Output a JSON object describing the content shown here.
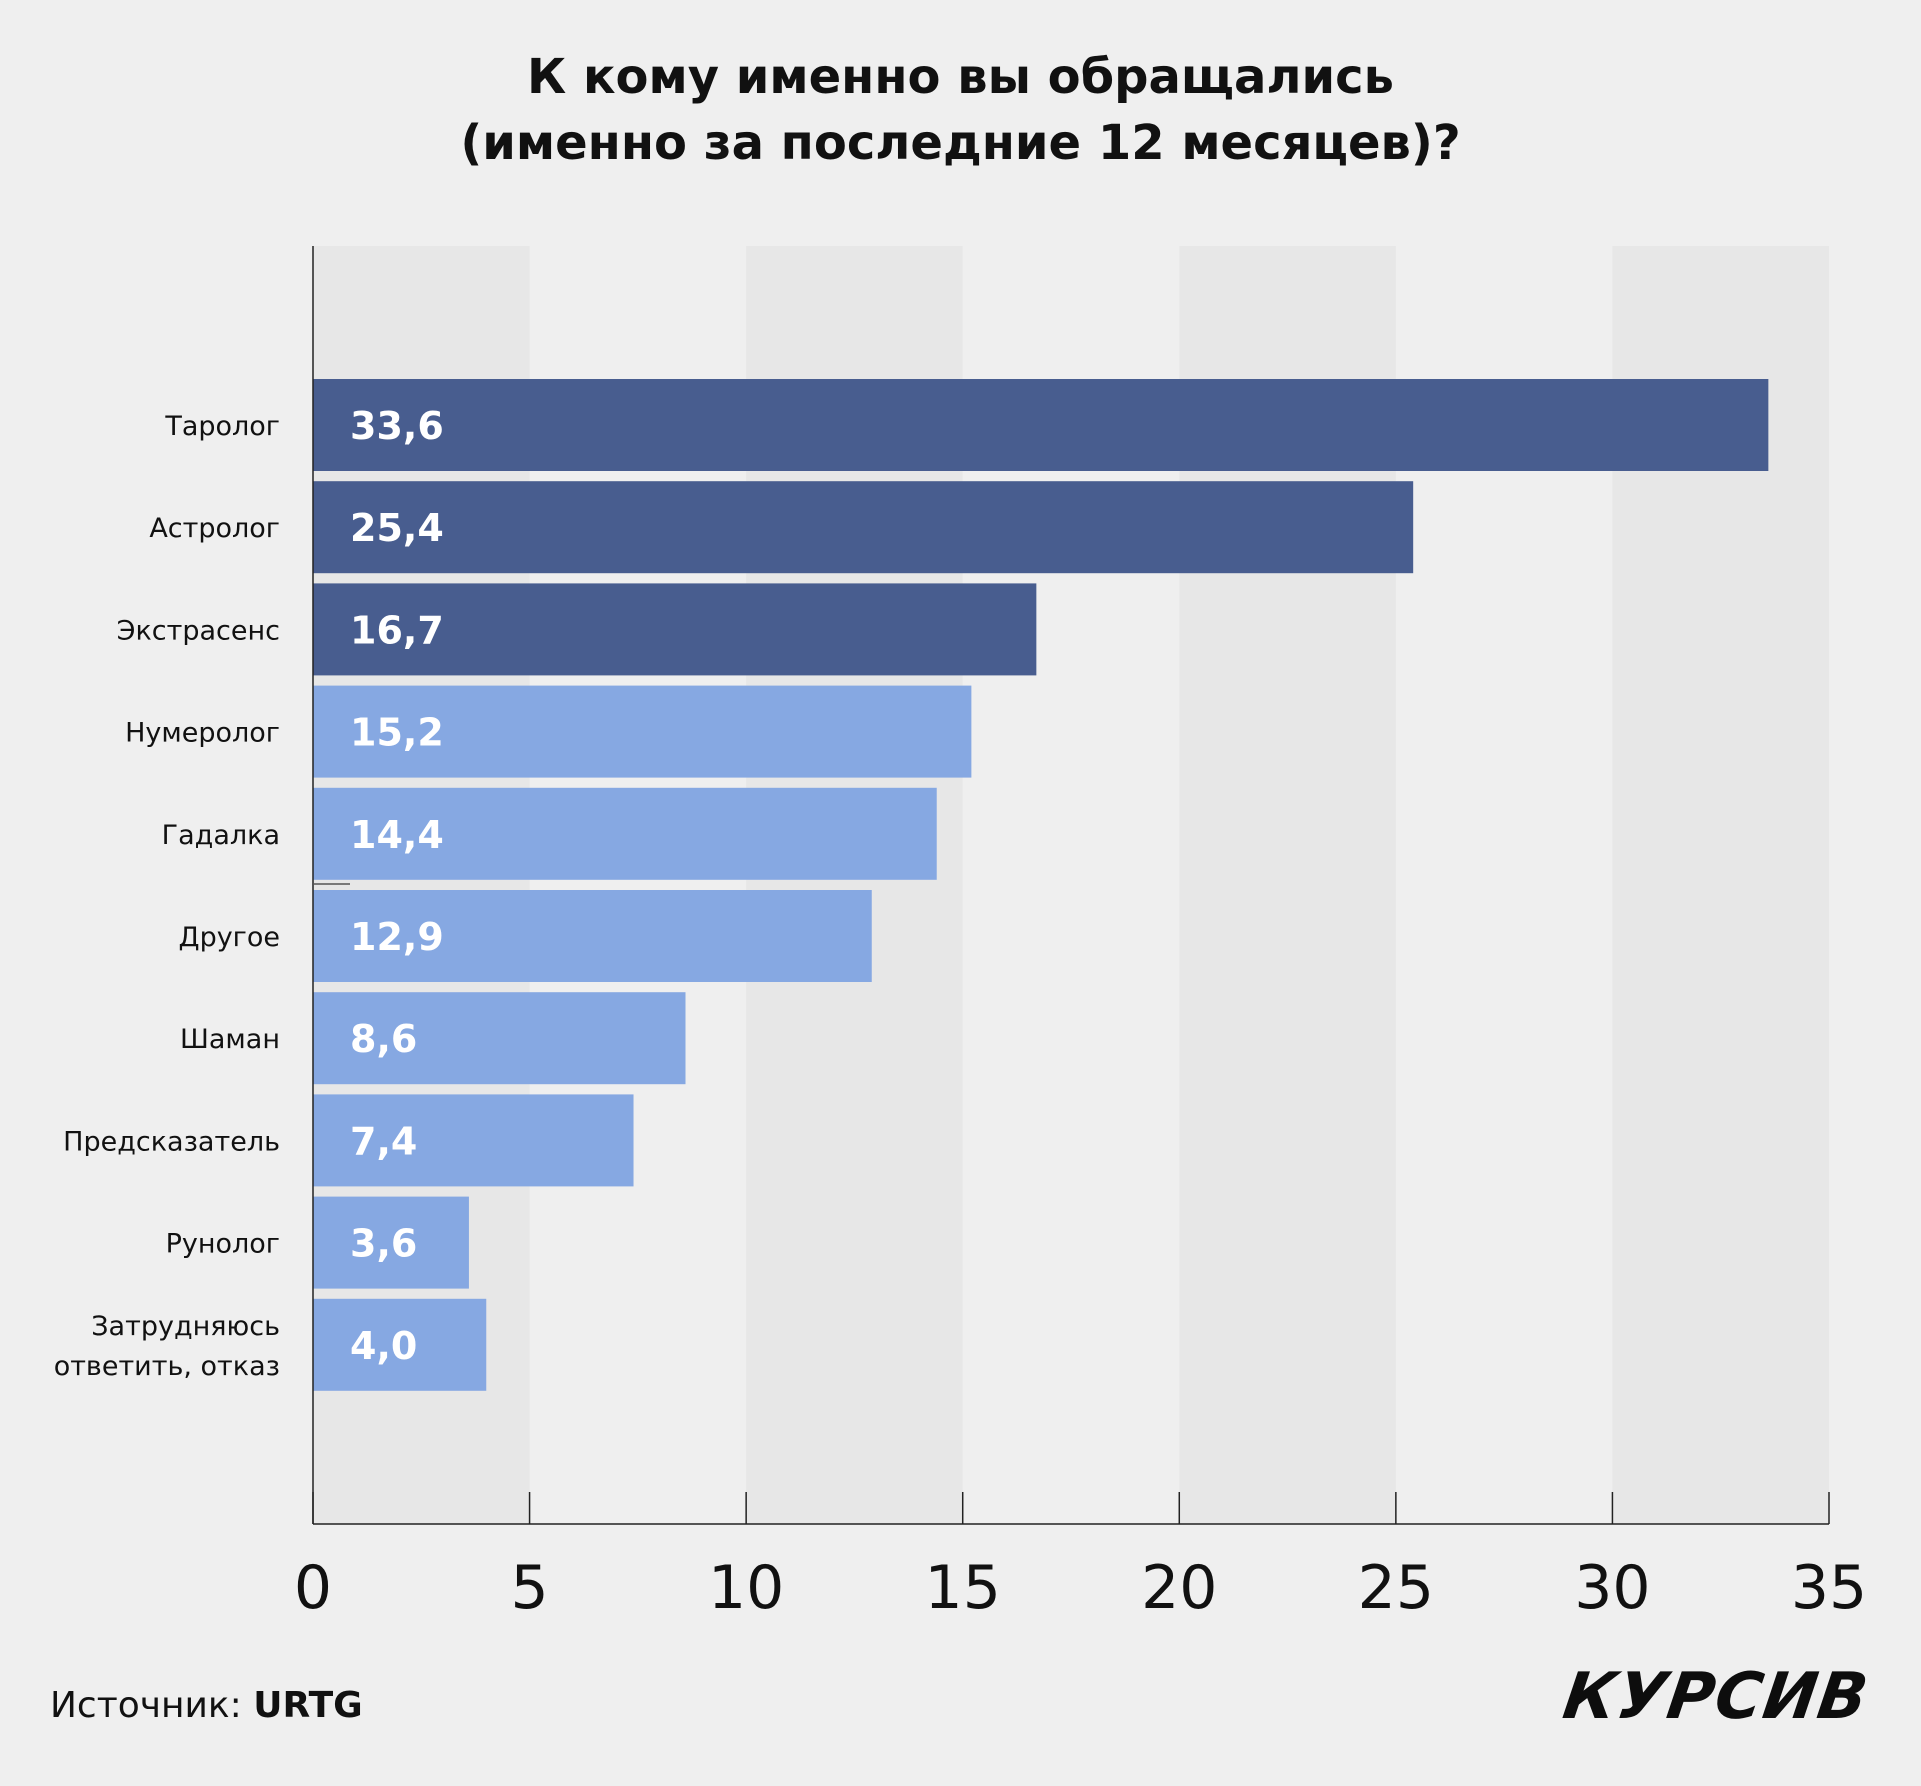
{
  "chart_data": {
    "type": "bar",
    "orientation": "horizontal",
    "title_lines": [
      "К кому именно вы обращались",
      "(именно за последние 12 месяцев)?"
    ],
    "categories": [
      "Таролог",
      "Астролог",
      "Экстрасенс",
      "Нумеролог",
      "Гадалка",
      "Другое",
      "Шаман",
      "Предсказатель",
      "Рунолог",
      "Затрудняюсь ответить, отказ"
    ],
    "category_label_lines": [
      [
        "Таролог"
      ],
      [
        "Астролог"
      ],
      [
        "Экстрасенс"
      ],
      [
        "Нумеролог"
      ],
      [
        "Гадалка"
      ],
      [
        "Другое"
      ],
      [
        "Шаман"
      ],
      [
        "Предсказатель"
      ],
      [
        "Рунолог"
      ],
      [
        "Затрудняюсь",
        "ответить, отказ"
      ]
    ],
    "values": [
      33.6,
      25.4,
      16.7,
      15.2,
      14.4,
      12.9,
      8.6,
      7.4,
      3.6,
      4.0
    ],
    "value_labels": [
      "33,6",
      "25,4",
      "16,7",
      "15,2",
      "14,4",
      "12,9",
      "8,6",
      "7,4",
      "3,6",
      "4,0"
    ],
    "xlim": [
      0,
      35
    ],
    "xticks": [
      0,
      5,
      10,
      15,
      20,
      25,
      30,
      35
    ],
    "xlabel": "",
    "ylabel": "",
    "grid": "alternating vertical bands",
    "legend": "none",
    "colors": {
      "bar_dark": "#485d8f",
      "bar_light": "#86a8e2",
      "band": "#e7e7e7",
      "background": "#efefef",
      "axis": "#222222"
    },
    "dark_bar_count": 3
  },
  "footer": {
    "source_label": "Источник:",
    "source_value": "URTG",
    "brand": "КУРСИВ"
  }
}
